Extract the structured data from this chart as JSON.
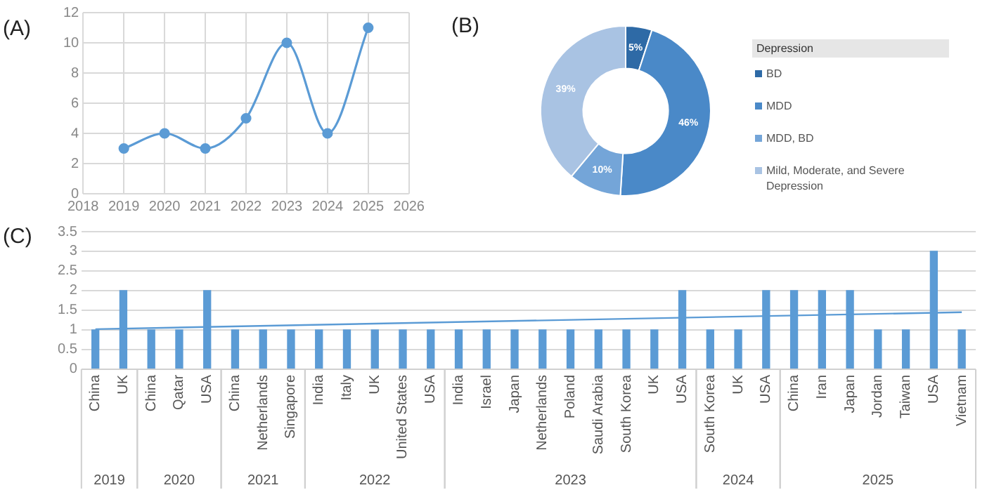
{
  "chart_data": [
    {
      "type": "line",
      "annotations": [
        "(A)"
      ],
      "x": [
        2019,
        2020,
        2021,
        2022,
        2023,
        2024,
        2025
      ],
      "values": [
        3,
        4,
        3,
        5,
        10,
        4,
        11
      ],
      "color": "#5b9bd5",
      "xlim": [
        2018,
        2026
      ],
      "xticks": [
        2018,
        2019,
        2020,
        2021,
        2022,
        2023,
        2024,
        2025,
        2026
      ],
      "ylim": [
        0,
        12
      ],
      "yticks": [
        0,
        2,
        4,
        6,
        8,
        10,
        12
      ],
      "grid": true,
      "marker": "circle"
    },
    {
      "type": "donut",
      "annotations": [
        "(B)"
      ],
      "categories": [
        "BD",
        "MDD",
        "MDD, BD",
        "Mild, Moderate, and Severe Depression"
      ],
      "values": [
        5,
        46,
        10,
        39
      ],
      "colors": [
        "#2e6aa6",
        "#4a89c8",
        "#74a5d8",
        "#a9c3e3"
      ],
      "value_labels": [
        "5%",
        "46%",
        "10%",
        "39%"
      ],
      "legend": "right",
      "legend_title": "Depression"
    },
    {
      "type": "bar",
      "annotations": [
        "(C)",
        "2019",
        "2020",
        "2021",
        "2022",
        "2023",
        "2024",
        "2025"
      ],
      "categories": [
        "China",
        "UK",
        "China",
        "Qatar",
        "USA",
        "China",
        "Netherlands",
        "Singapore",
        "India",
        "Italy",
        "UK",
        "United States",
        "USA",
        "India",
        "Israel",
        "Japan",
        "Netherlands",
        "Poland",
        "Saudi Arabia",
        "South Korea",
        "UK",
        "USA",
        "South Korea",
        "UK",
        "USA",
        "China",
        "Iran",
        "Japan",
        "Jordan",
        "Taiwan",
        "USA",
        "Vietnam"
      ],
      "series": [
        {
          "type": "bar",
          "color": "#5b9bd5",
          "values": [
            1,
            2,
            1,
            1,
            2,
            1,
            1,
            1,
            1,
            1,
            1,
            1,
            1,
            1,
            1,
            1,
            1,
            1,
            1,
            1,
            1,
            2,
            1,
            1,
            2,
            2,
            2,
            2,
            1,
            1,
            3,
            1
          ]
        },
        {
          "type": "line",
          "color": "#5b9bd5",
          "values": [
            1.02,
            null,
            null,
            null,
            null,
            null,
            null,
            null,
            null,
            null,
            null,
            null,
            null,
            null,
            null,
            null,
            null,
            null,
            null,
            null,
            null,
            null,
            null,
            null,
            null,
            null,
            null,
            null,
            null,
            null,
            null,
            1.45
          ]
        }
      ],
      "ylim": [
        0,
        3.5
      ],
      "yticks": [
        0,
        0.5,
        1,
        1.5,
        2,
        2.5,
        3,
        3.5
      ],
      "grid": "y"
    }
  ]
}
